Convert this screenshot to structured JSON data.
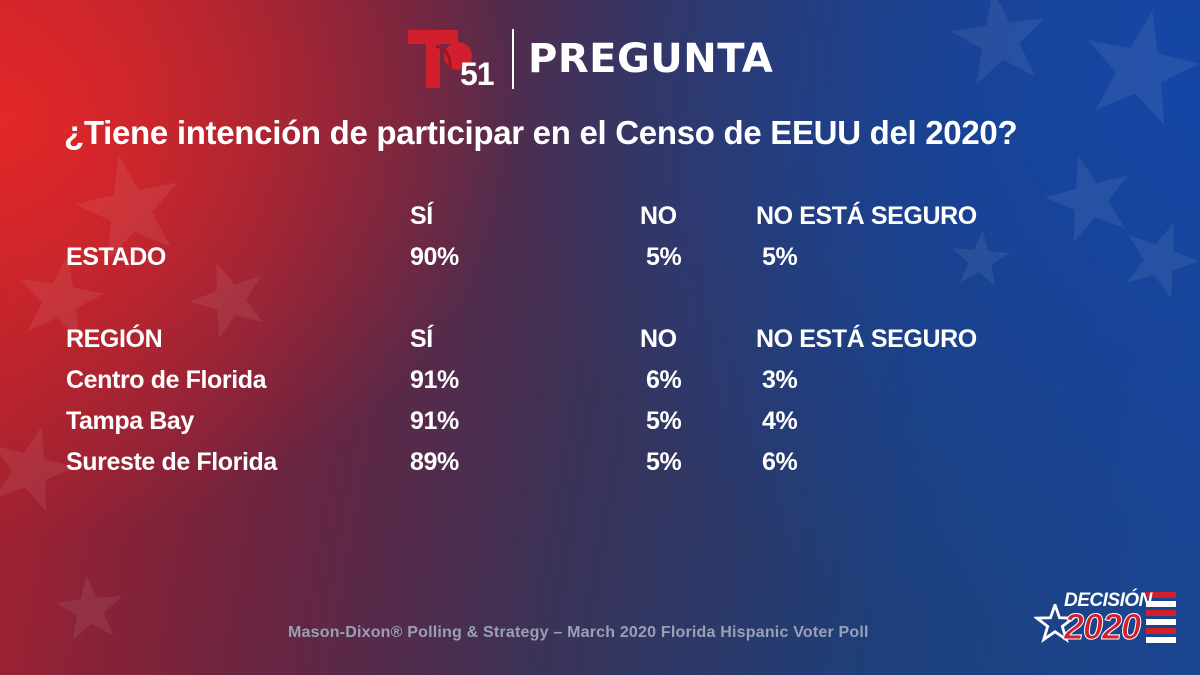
{
  "header": {
    "logo_number": "51",
    "title": "PREGUNTA"
  },
  "question": "¿Tiene intención de participar en el Censo de EEUU del 2020?",
  "state_section": {
    "columns": [
      "SÍ",
      "NO",
      "NO ESTÁ SEGURO"
    ],
    "row": {
      "label": "ESTADO",
      "si": "90%",
      "no": "5%",
      "ns": "5%"
    }
  },
  "region_section": {
    "header_label": "REGIÓN",
    "columns": [
      "SÍ",
      "NO",
      "NO ESTÁ SEGURO"
    ],
    "rows": [
      {
        "label": "Centro de Florida",
        "si": "91%",
        "no": "6%",
        "ns": "3%"
      },
      {
        "label": "Tampa Bay",
        "si": "91%",
        "no": "5%",
        "ns": "4%"
      },
      {
        "label": "Sureste de Florida",
        "si": "89%",
        "no": "5%",
        "ns": "6%"
      }
    ]
  },
  "source": "Mason-Dixon® Polling & Strategy – March 2020 Florida Hispanic Voter Poll",
  "decision_logo": {
    "label": "DECISIÓN",
    "year": "2020"
  },
  "colors": {
    "brand_red": "#d21f2e",
    "text": "#ffffff",
    "source_text": "#9aa0b4"
  },
  "icons": [
    "telemundo-t-logo",
    "star-icon",
    "flag-stripes-icon"
  ]
}
